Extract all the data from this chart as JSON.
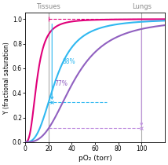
{
  "title_left": "Tissues",
  "title_right": "Lungs",
  "xlabel": "pO₂ (torr)",
  "ylabel": "Y (fractional saturation)",
  "xlim": [
    0,
    120
  ],
  "ylim": [
    0.0,
    1.05
  ],
  "xticks": [
    0,
    20,
    40,
    60,
    80,
    100
  ],
  "yticks": [
    0.0,
    0.2,
    0.4,
    0.6,
    0.8,
    1.0
  ],
  "vline_tissues": 20,
  "vline_lungs": 100,
  "curves": [
    {
      "p50": 10,
      "n": 2.8,
      "color": "#e0007a",
      "lw": 1.5
    },
    {
      "p50": 26,
      "n": 2.8,
      "color": "#30b8f0",
      "lw": 1.5
    },
    {
      "p50": 42,
      "n": 2.8,
      "color": "#9060c0",
      "lw": 1.5
    }
  ],
  "tissues_pO2": 20,
  "lungs_pO2": 100,
  "dashed_color_blue": "#30b8f0",
  "dashed_color_purple": "#c090e0",
  "dashed_color_pink": "#e0007a",
  "ann88_text": "88%",
  "ann88_color": "#30b8f0",
  "ann77_text": "77%",
  "ann77_color": "#9060c0",
  "background": "#ffffff",
  "vline_color": "#aaaaaa",
  "title_color": "#888888"
}
